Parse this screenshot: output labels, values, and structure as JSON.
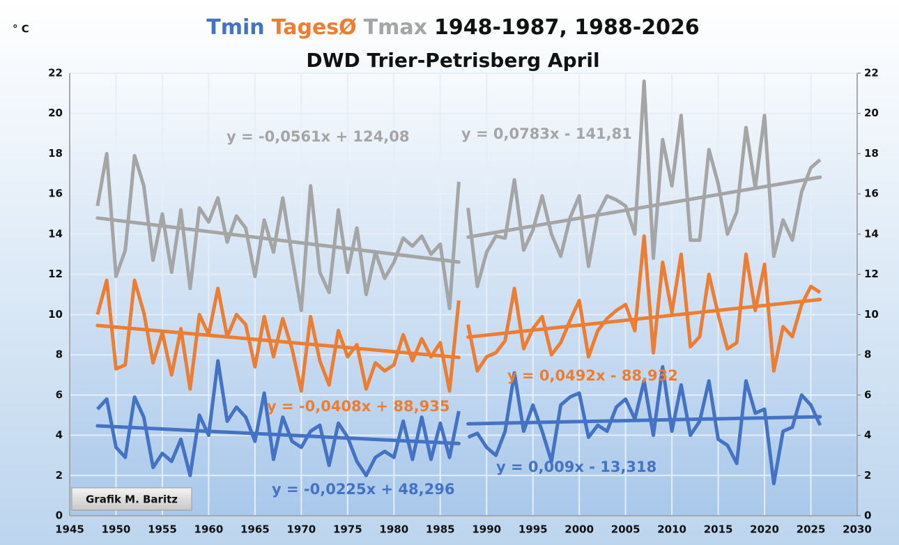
{
  "chart_data": {
    "type": "line",
    "title_parts": [
      {
        "text": "Tmin",
        "color": "#4472c4"
      },
      {
        "text": "TagesØ",
        "color": "#ed7d31"
      },
      {
        "text": "Tmax",
        "color": "#a5a5a5"
      },
      {
        "text": "1948-1987, 1988-2026",
        "color": "#111111"
      }
    ],
    "subtitle": "DWD Trier-Petrisberg April",
    "y_unit": "° C",
    "credit": "Grafik M. Baritz",
    "xlim": [
      1945,
      2030
    ],
    "xticks": [
      1945,
      1950,
      1955,
      1960,
      1965,
      1970,
      1975,
      1980,
      1985,
      1990,
      1995,
      2000,
      2005,
      2010,
      2015,
      2020,
      2025,
      2030
    ],
    "ylim": [
      0,
      22
    ],
    "yticks": [
      0,
      2,
      4,
      6,
      8,
      10,
      12,
      14,
      16,
      18,
      20,
      22
    ],
    "y2lim": [
      0,
      22
    ],
    "y2ticks": [
      0,
      2,
      4,
      6,
      8,
      10,
      12,
      14,
      16,
      18,
      20,
      22
    ],
    "grid": true,
    "periods": [
      {
        "x": [
          1948,
          1949,
          1950,
          1951,
          1952,
          1953,
          1954,
          1955,
          1956,
          1957,
          1958,
          1959,
          1960,
          1961,
          1962,
          1963,
          1964,
          1965,
          1966,
          1967,
          1968,
          1969,
          1970,
          1971,
          1972,
          1973,
          1974,
          1975,
          1976,
          1977,
          1978,
          1979,
          1980,
          1981,
          1982,
          1983,
          1984,
          1985,
          1986,
          1987
        ],
        "series": [
          {
            "color": "#a5a5a5",
            "values": [
              15.4,
              18.0,
              11.9,
              13.2,
              17.9,
              16.4,
              12.7,
              15.0,
              12.1,
              15.2,
              11.3,
              15.3,
              14.6,
              15.8,
              13.6,
              14.9,
              14.3,
              11.9,
              14.7,
              13.1,
              15.8,
              12.9,
              10.2,
              16.4,
              12.1,
              11.1,
              15.2,
              12.1,
              14.3,
              11.0,
              13.1,
              11.8,
              12.6,
              13.8,
              13.4,
              13.9,
              13.0,
              13.5,
              10.3,
              16.6
            ],
            "trend": {
              "x": [
                1948,
                1987
              ],
              "values": [
                14.8,
                12.61
              ]
            },
            "equation": "y = -0,0561x + 124,08"
          },
          {
            "color": "#ed7d31",
            "values": [
              10.0,
              11.7,
              7.3,
              7.5,
              11.7,
              10.1,
              7.6,
              9.1,
              7.0,
              9.3,
              6.3,
              10.0,
              9.0,
              11.3,
              8.9,
              10.0,
              9.5,
              7.4,
              9.9,
              7.9,
              9.8,
              8.3,
              6.2,
              9.9,
              7.7,
              6.5,
              9.2,
              7.9,
              8.5,
              6.3,
              7.6,
              7.2,
              7.5,
              9.0,
              7.7,
              8.8,
              7.9,
              8.6,
              6.2,
              10.7
            ],
            "trend": {
              "x": [
                1948,
                1987
              ],
              "values": [
                9.46,
                7.87
              ]
            },
            "equation": "y = -0,0408x + 88,935"
          },
          {
            "color": "#4472c4",
            "values": [
              5.3,
              5.8,
              3.4,
              2.9,
              5.9,
              4.9,
              2.4,
              3.1,
              2.7,
              3.8,
              2.0,
              5.0,
              4.0,
              7.7,
              4.7,
              5.4,
              4.9,
              3.7,
              6.1,
              2.8,
              4.9,
              3.7,
              3.4,
              4.2,
              4.5,
              2.5,
              4.6,
              3.9,
              2.7,
              2.0,
              2.9,
              3.2,
              2.9,
              4.7,
              2.8,
              4.9,
              2.8,
              4.6,
              2.9,
              5.2
            ],
            "trend": {
              "x": [
                1948,
                1987
              ],
              "values": [
                4.47,
                3.59
              ]
            },
            "equation": "y = -0,0225x + 48,296"
          }
        ]
      },
      {
        "x": [
          1988,
          1989,
          1990,
          1991,
          1992,
          1993,
          1994,
          1995,
          1996,
          1997,
          1998,
          1999,
          2000,
          2001,
          2002,
          2003,
          2004,
          2005,
          2006,
          2007,
          2008,
          2009,
          2010,
          2011,
          2012,
          2013,
          2014,
          2015,
          2016,
          2017,
          2018,
          2019,
          2020,
          2021,
          2022,
          2023,
          2024,
          2025,
          2026
        ],
        "series": [
          {
            "color": "#a5a5a5",
            "values": [
              15.3,
              11.4,
              13.1,
              13.9,
              13.8,
              16.7,
              13.2,
              14.2,
              15.9,
              14.0,
              12.9,
              14.8,
              15.9,
              12.4,
              15.0,
              15.9,
              15.7,
              15.4,
              14.0,
              21.6,
              12.8,
              18.7,
              16.4,
              19.9,
              13.7,
              13.7,
              18.2,
              16.5,
              14.0,
              15.1,
              19.3,
              16.3,
              19.9,
              12.9,
              14.7,
              13.7,
              16.1,
              17.3,
              17.7
            ],
            "trend": {
              "x": [
                1988,
                2026
              ],
              "values": [
                13.85,
                16.83
              ]
            },
            "equation": "y = 0,0783x - 141,81"
          },
          {
            "color": "#ed7d31",
            "values": [
              9.5,
              7.2,
              7.9,
              8.1,
              8.7,
              11.3,
              8.3,
              9.3,
              9.9,
              8.0,
              8.6,
              9.7,
              10.7,
              7.9,
              9.2,
              9.8,
              10.2,
              10.5,
              9.2,
              13.9,
              8.1,
              12.6,
              10.1,
              13.0,
              8.4,
              8.9,
              12.0,
              10.0,
              8.3,
              8.6,
              13.0,
              10.2,
              12.5,
              7.2,
              9.4,
              8.9,
              10.5,
              11.4,
              11.1
            ],
            "trend": {
              "x": [
                1988,
                2026
              ],
              "values": [
                8.88,
                10.75
              ]
            },
            "equation": "y = 0,0492x - 88,932"
          },
          {
            "color": "#4472c4",
            "values": [
              3.9,
              4.1,
              3.4,
              3.0,
              4.2,
              7.1,
              4.2,
              5.5,
              4.2,
              2.7,
              5.5,
              5.9,
              6.1,
              3.9,
              4.5,
              4.2,
              5.4,
              5.8,
              4.8,
              6.7,
              4.0,
              7.4,
              4.2,
              6.5,
              4.0,
              4.7,
              6.7,
              3.8,
              3.5,
              2.6,
              6.7,
              5.1,
              5.3,
              1.6,
              4.2,
              4.4,
              6.0,
              5.5,
              4.5
            ],
            "trend": {
              "x": [
                1988,
                2026
              ],
              "values": [
                4.57,
                4.92
              ]
            },
            "equation": "y = 0,009x - 13,318"
          }
        ]
      }
    ]
  }
}
